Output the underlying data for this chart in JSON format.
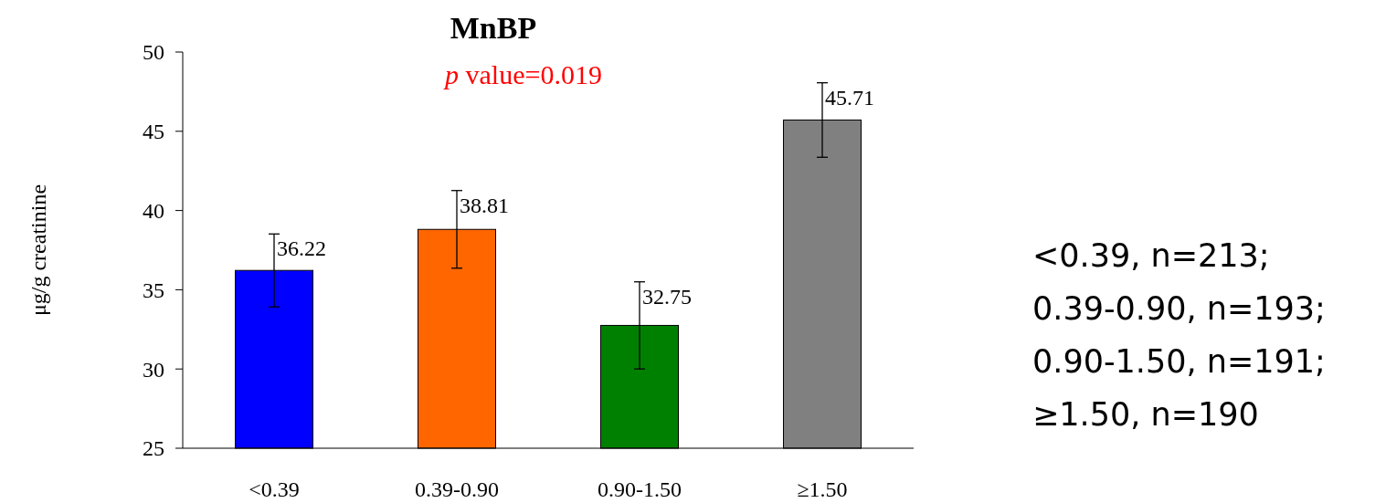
{
  "chart_data": {
    "type": "bar",
    "title": "MnBP",
    "ylabel": "μg/g creatinine",
    "categories": [
      "<0.39",
      "0.39-0.90",
      "0.90-1.50",
      "≥1.50"
    ],
    "values": [
      36.22,
      38.81,
      32.75,
      45.71
    ],
    "colors": [
      "#0000ff",
      "#ff6600",
      "#008000",
      "#808080"
    ],
    "errors": [
      2.3,
      2.45,
      2.75,
      2.35
    ],
    "data_labels": true,
    "ylim": [
      25,
      50
    ],
    "yticks": [
      25,
      30,
      35,
      40,
      45,
      50
    ],
    "grid": false,
    "annotations": [
      "p value=0.019",
      "<0.39, n=213;",
      "0.39-0.90, n=193;",
      "0.90-1.50, n=191;",
      "≥1.50, n=190"
    ]
  }
}
